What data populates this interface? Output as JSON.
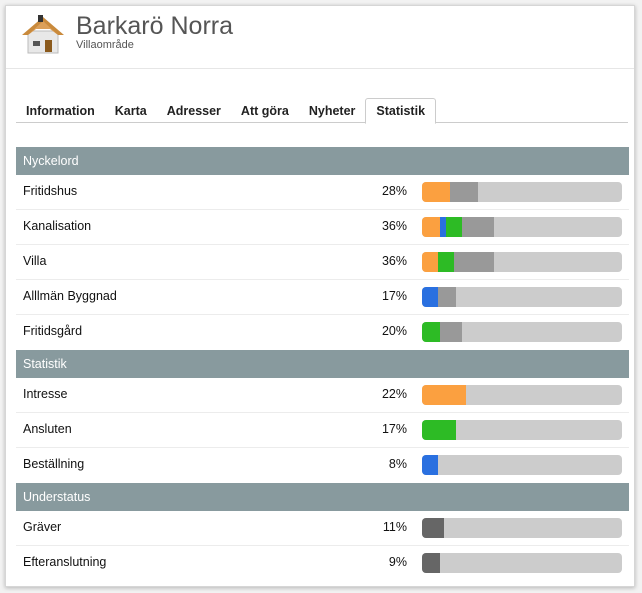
{
  "header": {
    "title": "Barkarö Norra",
    "subtitle": "Villaområde"
  },
  "tabs": [
    {
      "label": "Information"
    },
    {
      "label": "Karta"
    },
    {
      "label": "Adresser"
    },
    {
      "label": "Att göra"
    },
    {
      "label": "Nyheter"
    },
    {
      "label": "Statistik",
      "active": true
    }
  ],
  "colors": {
    "orange": "#fba040",
    "blue": "#2a70e0",
    "green": "#2dbb25",
    "gray": "#999999",
    "dark": "#666666",
    "track": "#cccccc"
  },
  "sections": [
    {
      "title": "Nyckelord",
      "rows": [
        {
          "label": "Fritidshus",
          "percent": "28%",
          "segments": [
            {
              "color": "orange",
              "value": 14
            },
            {
              "color": "gray",
              "value": 14
            }
          ]
        },
        {
          "label": "Kanalisation",
          "percent": "36%",
          "segments": [
            {
              "color": "orange",
              "value": 9
            },
            {
              "color": "blue",
              "value": 3
            },
            {
              "color": "green",
              "value": 8
            },
            {
              "color": "gray",
              "value": 16
            }
          ]
        },
        {
          "label": "Villa",
          "percent": "36%",
          "segments": [
            {
              "color": "orange",
              "value": 8
            },
            {
              "color": "green",
              "value": 8
            },
            {
              "color": "gray",
              "value": 20
            }
          ]
        },
        {
          "label": "Alllmän Byggnad",
          "percent": "17%",
          "segments": [
            {
              "color": "blue",
              "value": 8
            },
            {
              "color": "gray",
              "value": 9
            }
          ]
        },
        {
          "label": "Fritidsgård",
          "percent": "20%",
          "segments": [
            {
              "color": "green",
              "value": 9
            },
            {
              "color": "gray",
              "value": 11
            }
          ]
        }
      ]
    },
    {
      "title": "Statistik",
      "rows": [
        {
          "label": "Intresse",
          "percent": "22%",
          "segments": [
            {
              "color": "orange",
              "value": 22
            }
          ]
        },
        {
          "label": "Ansluten",
          "percent": "17%",
          "segments": [
            {
              "color": "green",
              "value": 17
            }
          ]
        },
        {
          "label": "Beställning",
          "percent": "8%",
          "segments": [
            {
              "color": "blue",
              "value": 8
            }
          ]
        }
      ]
    },
    {
      "title": "Understatus",
      "rows": [
        {
          "label": "Gräver",
          "percent": "11%",
          "segments": [
            {
              "color": "dark",
              "value": 11
            }
          ]
        },
        {
          "label": "Efteranslutning",
          "percent": "9%",
          "segments": [
            {
              "color": "dark",
              "value": 9
            }
          ]
        }
      ]
    }
  ]
}
